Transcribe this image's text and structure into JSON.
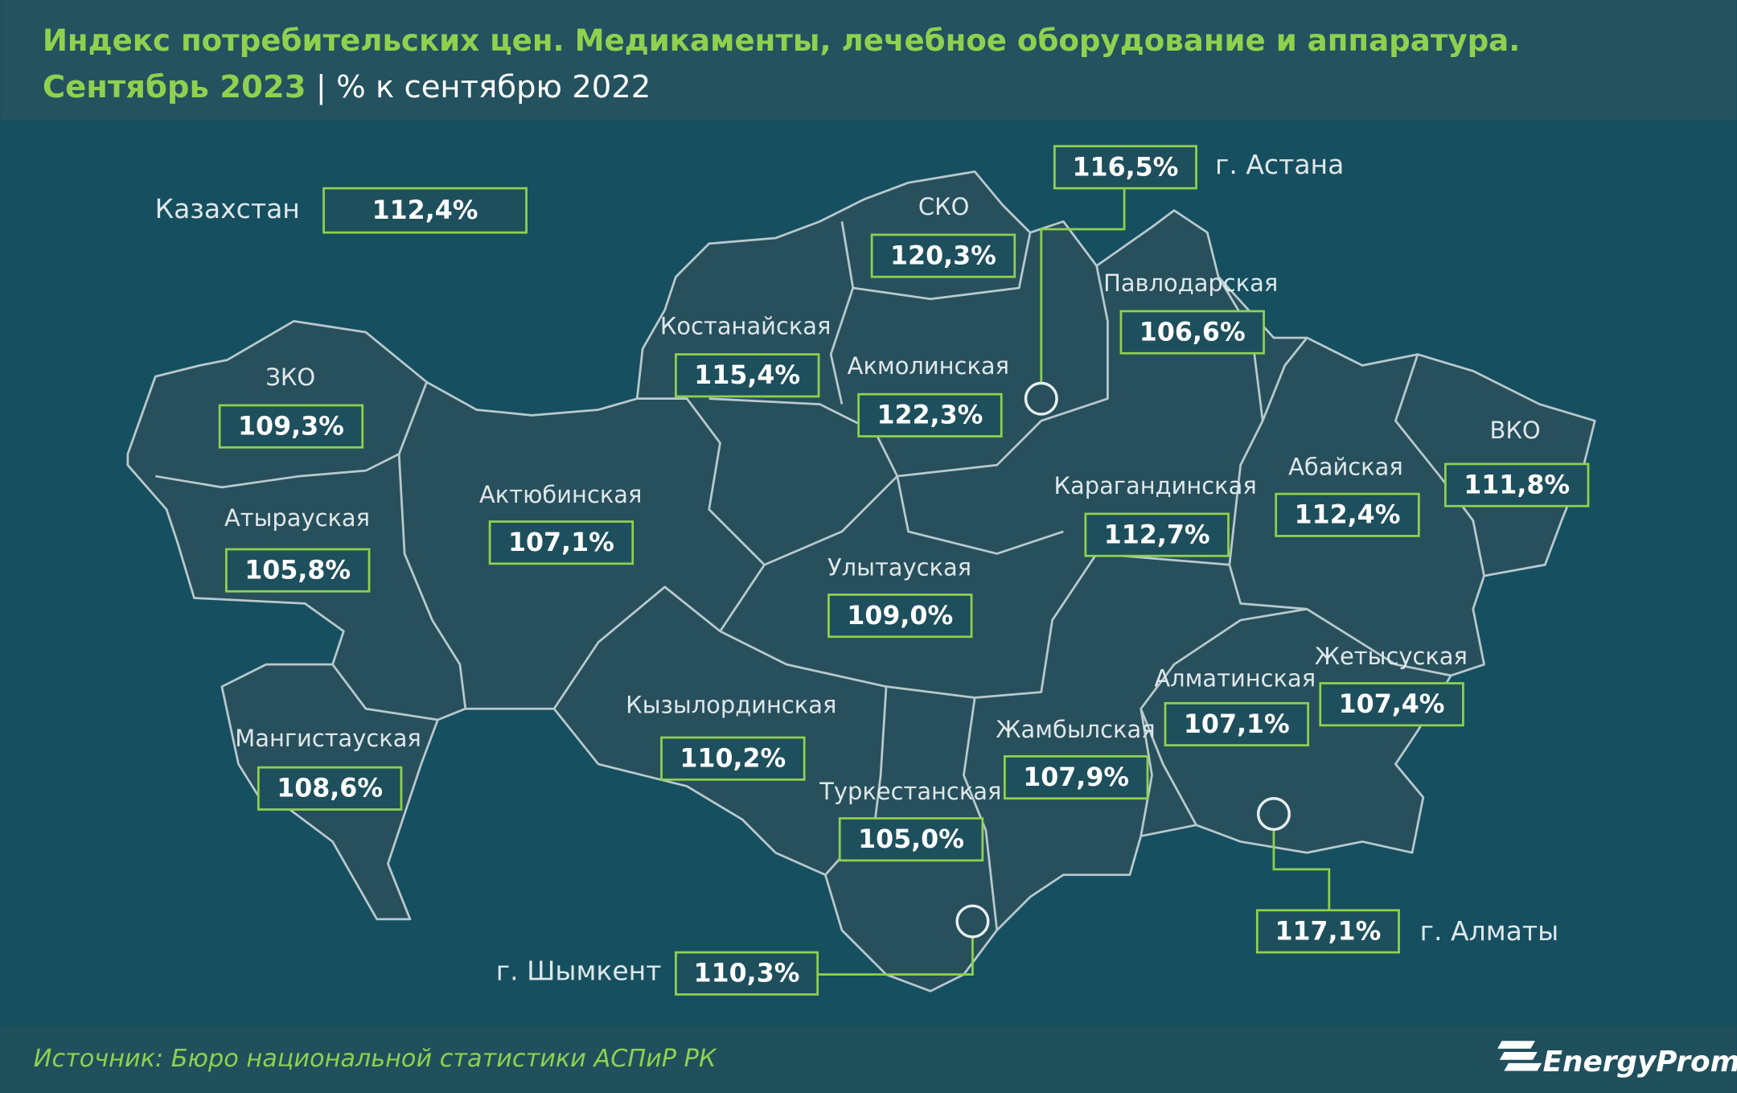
{
  "header": {
    "title": "Индекс потребительских цен. Медикаменты, лечебное оборудование и аппаратура.",
    "period": "Сентябрь 2023",
    "separator": "|",
    "unit": "% к сентябрю 2022"
  },
  "country": {
    "name": "Казахстан",
    "value": "112,4%"
  },
  "regions": [
    {
      "name": "СКО",
      "value": "120,3%"
    },
    {
      "name": "Павлодарская",
      "value": "106,6%"
    },
    {
      "name": "Костанайская",
      "value": "115,4%"
    },
    {
      "name": "Акмолинская",
      "value": "122,3%"
    },
    {
      "name": "ЗКО",
      "value": "109,3%"
    },
    {
      "name": "ВКО",
      "value": "111,8%"
    },
    {
      "name": "Абайская",
      "value": "112,4%"
    },
    {
      "name": "Карагандинская",
      "value": "112,7%"
    },
    {
      "name": "Актюбинская",
      "value": "107,1%"
    },
    {
      "name": "Атырауская",
      "value": "105,8%"
    },
    {
      "name": "Улытауская",
      "value": "109,0%"
    },
    {
      "name": "Жетысуская",
      "value": "107,4%"
    },
    {
      "name": "Алматинская",
      "value": "107,1%"
    },
    {
      "name": "Кызылординская",
      "value": "110,2%"
    },
    {
      "name": "Мангистауская",
      "value": "108,6%"
    },
    {
      "name": "Жамбылская",
      "value": "107,9%"
    },
    {
      "name": "Туркестанская",
      "value": "105,0%"
    }
  ],
  "cities": [
    {
      "name": "г. Астана",
      "value": "116,5%"
    },
    {
      "name": "г. Алматы",
      "value": "117,1%"
    },
    {
      "name": "г. Шымкент",
      "value": "110,3%"
    }
  ],
  "footer": {
    "source": "Источник: Бюро национальной статистики АСПиР РК",
    "logo": "EnergyProm"
  }
}
